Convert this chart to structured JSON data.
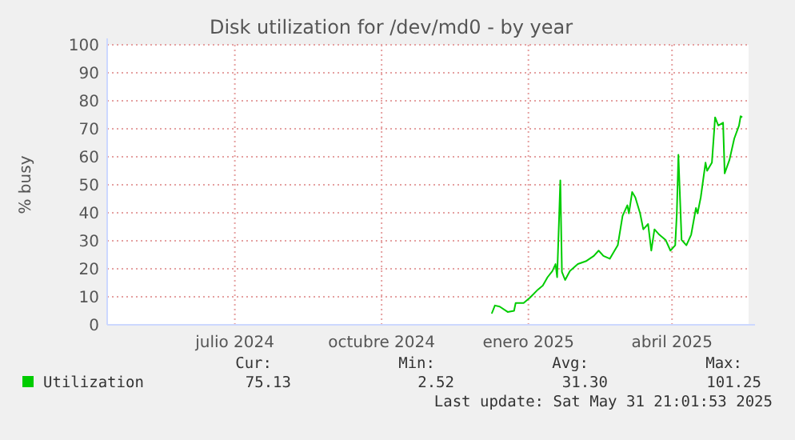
{
  "chart_data": {
    "type": "line",
    "title": "Disk utilization for /dev/md0 - by year",
    "ylabel": "% busy",
    "x": [
      "2024-12-09",
      "2024-12-11",
      "2024-12-14",
      "2024-12-19",
      "2024-12-23",
      "2024-12-24",
      "2024-12-29",
      "2025-01-02",
      "2025-01-07",
      "2025-01-10",
      "2025-01-13",
      "2025-01-16",
      "2025-01-18",
      "2025-01-19",
      "2025-01-21",
      "2025-01-22",
      "2025-01-24",
      "2025-01-27",
      "2025-02-01",
      "2025-02-06",
      "2025-02-11",
      "2025-02-14",
      "2025-02-17",
      "2025-02-21",
      "2025-02-24",
      "2025-02-26",
      "2025-03-01",
      "2025-03-04",
      "2025-03-05",
      "2025-03-07",
      "2025-03-09",
      "2025-03-12",
      "2025-03-14",
      "2025-03-17",
      "2025-03-19",
      "2025-03-21",
      "2025-03-24",
      "2025-03-28",
      "2025-03-31",
      "2025-04-03",
      "2025-04-04",
      "2025-04-05",
      "2025-04-07",
      "2025-04-10",
      "2025-04-13",
      "2025-04-16",
      "2025-04-17",
      "2025-04-19",
      "2025-04-22",
      "2025-04-23",
      "2025-04-26",
      "2025-04-28",
      "2025-04-30",
      "2025-05-03",
      "2025-05-04",
      "2025-05-07",
      "2025-05-10",
      "2025-05-13",
      "2025-05-14",
      "2025-05-15"
    ],
    "series": [
      {
        "name": "Utilization",
        "color": "#00cc00",
        "values": [
          4.0,
          6.9,
          6.5,
          4.6,
          5.0,
          7.8,
          7.8,
          9.7,
          12.6,
          14.0,
          17.0,
          19.2,
          21.7,
          17.0,
          51.6,
          18.9,
          16.0,
          19.2,
          21.7,
          22.7,
          24.6,
          26.5,
          24.6,
          23.6,
          26.5,
          28.4,
          38.9,
          42.7,
          39.8,
          47.4,
          45.5,
          39.8,
          34.1,
          36.0,
          26.5,
          34.1,
          32.2,
          30.3,
          26.5,
          28.4,
          39.8,
          60.7,
          30.3,
          28.4,
          32.2,
          41.7,
          39.8,
          45.5,
          57.9,
          55.0,
          57.9,
          74.1,
          71.2,
          72.2,
          54.1,
          58.9,
          66.5,
          71.2,
          74.5,
          74.1
        ]
      }
    ],
    "xlim": [
      "2024-04-12",
      "2025-05-19"
    ],
    "xticks": [
      {
        "value": "2024-07-01",
        "label": "julio 2024"
      },
      {
        "value": "2024-10-01",
        "label": "octubre 2024"
      },
      {
        "value": "2025-01-01",
        "label": "enero 2025"
      },
      {
        "value": "2025-04-01",
        "label": "abril 2025"
      }
    ],
    "ylim": [
      0,
      100
    ],
    "yticks": [
      0,
      10,
      20,
      30,
      40,
      50,
      60,
      70,
      80,
      90,
      100
    ],
    "grid": true,
    "legend": "bottom",
    "line_style": "solid",
    "marker": "none",
    "annotations": [
      "Cur:",
      "Min:",
      "Avg:",
      "Max:",
      "75.13",
      "2.52",
      "31.30",
      "101.25",
      "Last update: Sat May 31 21:01:53 2025"
    ]
  }
}
